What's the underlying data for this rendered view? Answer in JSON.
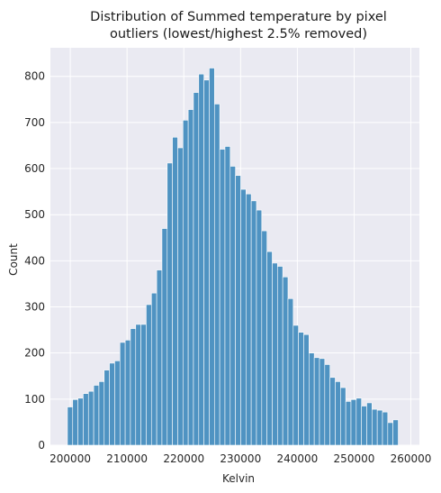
{
  "chart_data": {
    "type": "bar",
    "title_lines": [
      "Distribution of Summed temperature by pixel",
      "outliers (lowest/highest 2.5% removed)"
    ],
    "xlabel": "Kelvin",
    "ylabel": "Count",
    "xlim": [
      196500,
      261500
    ],
    "ylim": [
      0,
      862
    ],
    "x_ticks": [
      200000,
      210000,
      220000,
      230000,
      240000,
      250000,
      260000
    ],
    "x_tick_labels": [
      "200000",
      "210000",
      "220000",
      "230000",
      "240000",
      "250000",
      "260000"
    ],
    "y_ticks": [
      0,
      100,
      200,
      300,
      400,
      500,
      600,
      700,
      800
    ],
    "y_tick_labels": [
      "0",
      "100",
      "200",
      "300",
      "400",
      "500",
      "600",
      "700",
      "800"
    ],
    "grid": true,
    "bar_color": "#4f93c2",
    "bin_start": 199500,
    "bin_width": 925,
    "values": [
      83,
      99,
      102,
      112,
      117,
      130,
      138,
      163,
      178,
      183,
      223,
      228,
      253,
      262,
      262,
      305,
      330,
      380,
      470,
      612,
      668,
      645,
      705,
      728,
      765,
      805,
      792,
      818,
      740,
      642,
      648,
      605,
      585,
      555,
      545,
      530,
      510,
      465,
      420,
      395,
      388,
      365,
      318,
      260,
      245,
      240,
      200,
      190,
      188,
      175,
      147,
      138,
      125,
      95,
      99,
      102,
      85,
      92,
      78,
      76,
      72,
      49,
      55
    ]
  }
}
